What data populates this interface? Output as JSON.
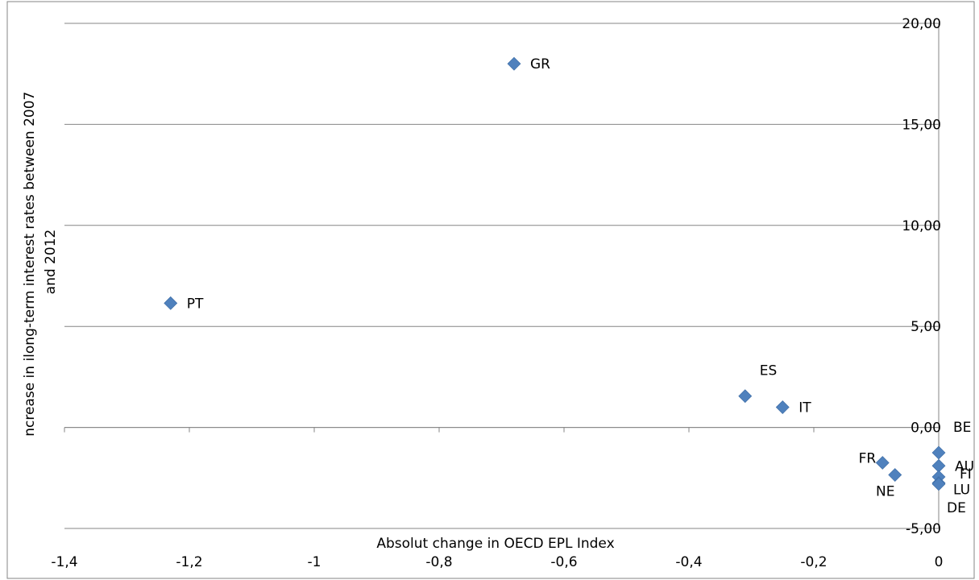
{
  "chart_data": {
    "type": "scatter",
    "title": "",
    "xlabel": "Absolut change in OECD EPL Index",
    "ylabel_lines": [
      "ncrease in ilong-term interest rates between 2007",
      "and 2012"
    ],
    "xlim": [
      -1.4,
      0
    ],
    "ylim": [
      -5,
      20
    ],
    "x_ticks": [
      "-1,4",
      "-1,2",
      "-1",
      "-0,8",
      "-0,6",
      "-0,4",
      "-0,2",
      "0"
    ],
    "x_tick_values": [
      -1.4,
      -1.2,
      -1.0,
      -0.8,
      -0.6,
      -0.4,
      -0.2,
      0
    ],
    "y_ticks": [
      "-5,00",
      "0,00",
      "5,00",
      "10,00",
      "15,00",
      "20,00"
    ],
    "y_tick_values": [
      -5,
      0,
      5,
      10,
      15,
      20
    ],
    "grid": "horizontal",
    "marker_color": "#4f81bd",
    "points": [
      {
        "label": "GR",
        "x": -0.68,
        "y": 18.0,
        "label_pos": "right"
      },
      {
        "label": "PT",
        "x": -1.23,
        "y": 6.15,
        "label_pos": "right"
      },
      {
        "label": "ES",
        "x": -0.31,
        "y": 1.55,
        "label_pos": "above-right"
      },
      {
        "label": "IT",
        "x": -0.25,
        "y": 1.0,
        "label_pos": "right"
      },
      {
        "label": "FR",
        "x": -0.09,
        "y": -1.75,
        "label_pos": "left"
      },
      {
        "label": "NE",
        "x": -0.07,
        "y": -2.35,
        "label_pos": "below"
      },
      {
        "label": "BE",
        "x": 0.0,
        "y": -1.25,
        "label_pos": "above-right"
      },
      {
        "label": "AU",
        "x": 0.0,
        "y": -1.9,
        "label_pos": "right"
      },
      {
        "label": "FI",
        "x": 0.0,
        "y": -2.45,
        "label_pos": "right-close"
      },
      {
        "label": "LU",
        "x": 0.0,
        "y": -2.75,
        "label_pos": "right-below"
      },
      {
        "label": "DE",
        "x": 0.0,
        "y": -2.8,
        "label_pos": "below-right"
      }
    ]
  }
}
